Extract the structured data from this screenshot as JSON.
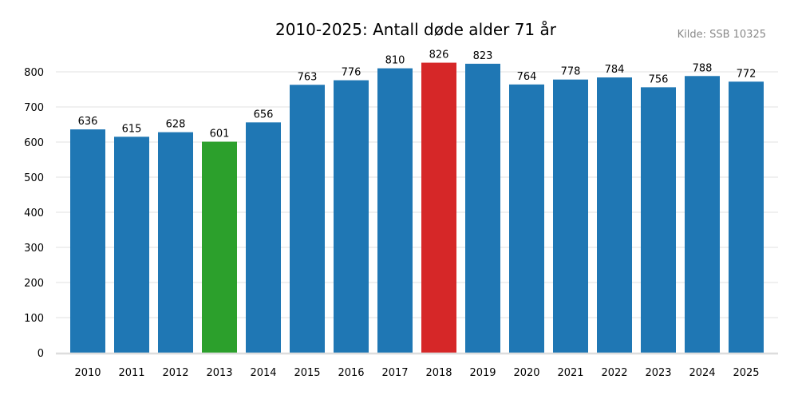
{
  "chart_data": {
    "type": "bar",
    "title": "2010-2025: Antall døde alder 71 år",
    "source": "Kilde: SSB 10325",
    "xlabel": "",
    "ylabel": "",
    "ylim": [
      0,
      800
    ],
    "yticks": [
      0,
      100,
      200,
      300,
      400,
      500,
      600,
      700,
      800
    ],
    "grid": true,
    "categories": [
      "2010",
      "2011",
      "2012",
      "2013",
      "2014",
      "2015",
      "2016",
      "2017",
      "2018",
      "2019",
      "2020",
      "2021",
      "2022",
      "2023",
      "2024",
      "2025"
    ],
    "values": [
      636,
      615,
      628,
      601,
      656,
      763,
      776,
      810,
      826,
      823,
      764,
      778,
      784,
      756,
      788,
      772
    ],
    "colors": {
      "default": "#1f77b4",
      "min": "#2ca02c",
      "max": "#d62728"
    },
    "bar_colors": [
      "#1f77b4",
      "#1f77b4",
      "#1f77b4",
      "#2ca02c",
      "#1f77b4",
      "#1f77b4",
      "#1f77b4",
      "#1f77b4",
      "#d62728",
      "#1f77b4",
      "#1f77b4",
      "#1f77b4",
      "#1f77b4",
      "#1f77b4",
      "#1f77b4",
      "#1f77b4"
    ]
  }
}
